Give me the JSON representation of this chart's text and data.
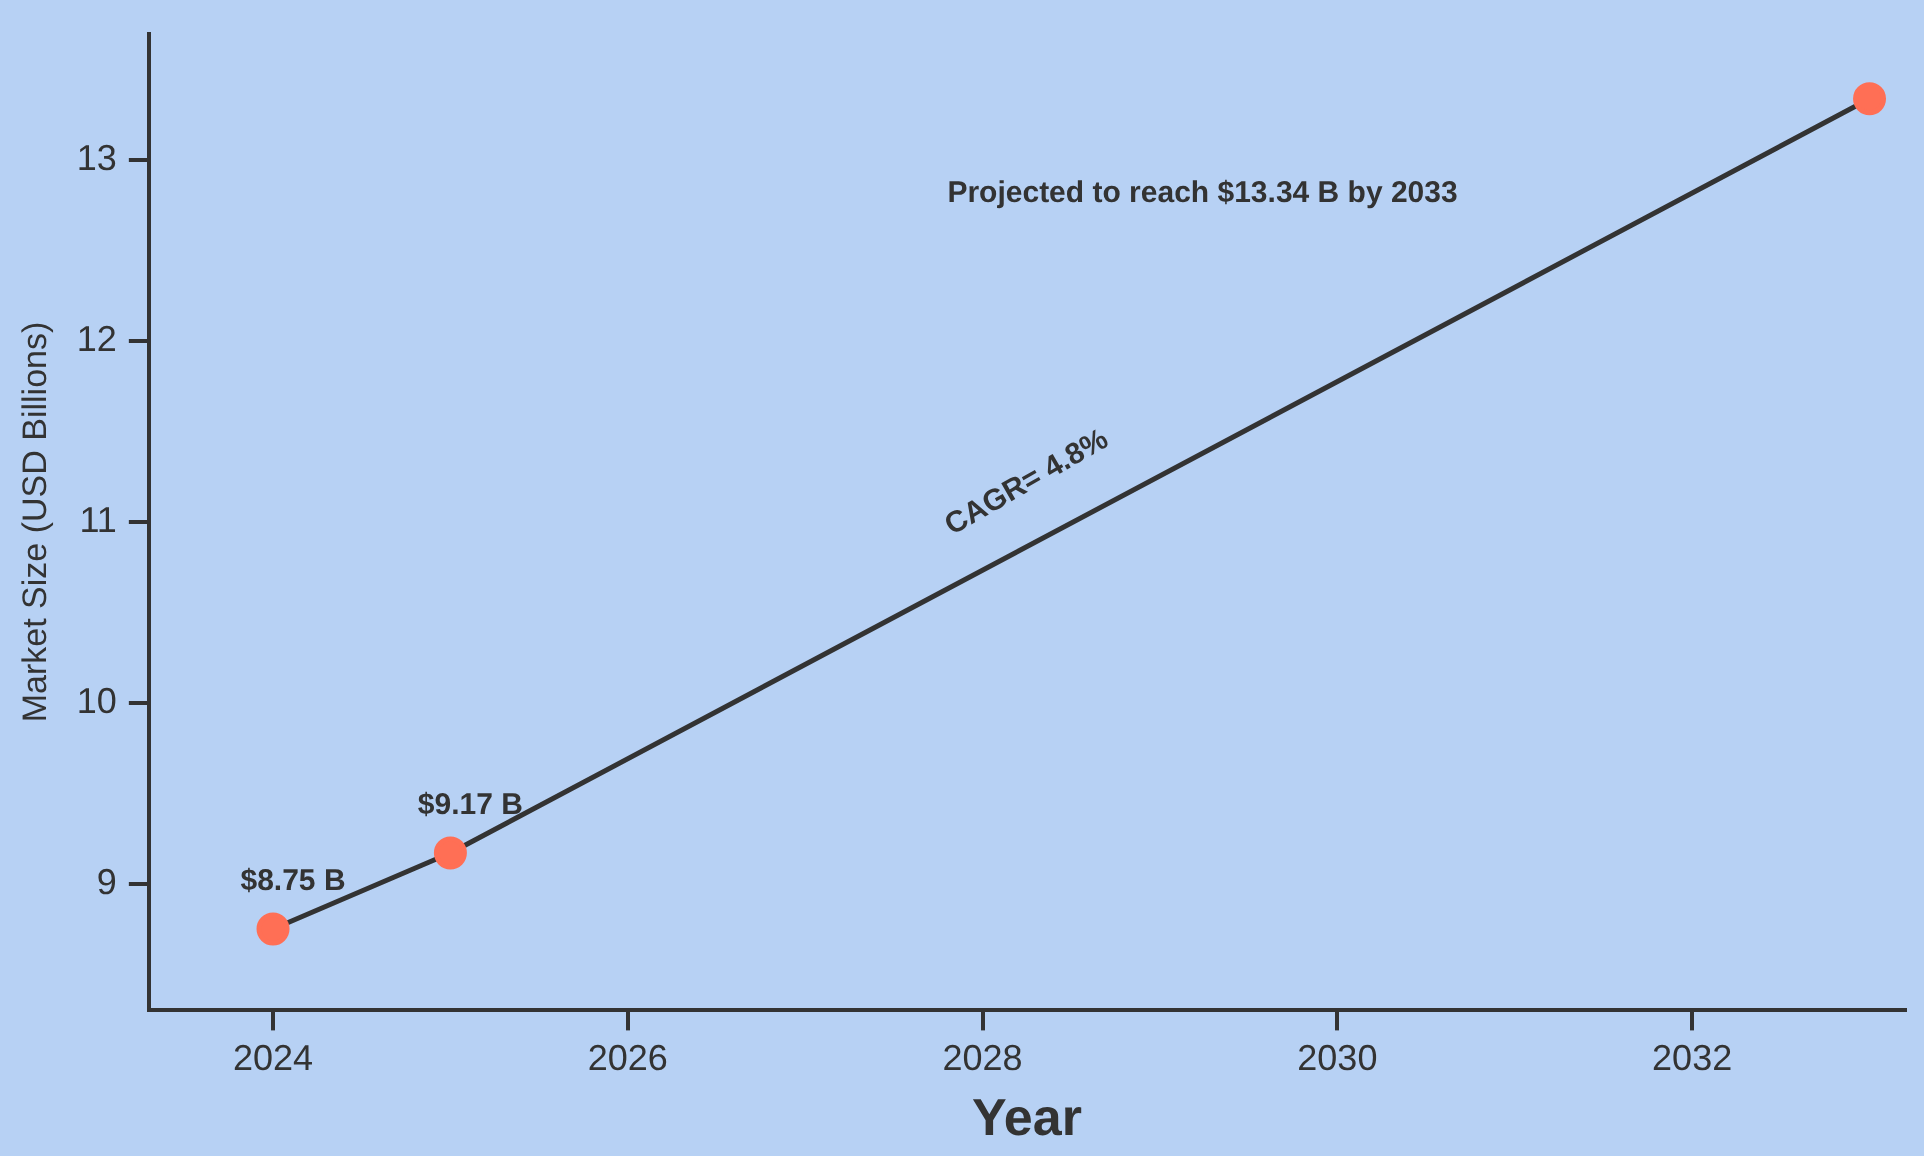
{
  "chart_data": {
    "type": "line",
    "xlabel": "Year",
    "ylabel": "Market Size (USD Billions)",
    "x": [
      2024,
      2025,
      2033
    ],
    "series": [
      {
        "color": "#ff6f55",
        "values": [
          8.75,
          9.17,
          13.34
        ],
        "value_labels": [
          "$8.75 B",
          "$9.17 B",
          null
        ]
      }
    ],
    "xlim": [
      2023.3,
      2033.2
    ],
    "xticks": [
      2024,
      2026,
      2028,
      2030,
      2032
    ],
    "ylim": [
      8.3,
      13.7
    ],
    "yticks": [
      9,
      10,
      11,
      12,
      13
    ],
    "grid": false,
    "legend": false,
    "marker": "circle",
    "line_style": "solid",
    "annotations": [
      "Projected to reach $13.34 B by 2033",
      "CAGR= 4.8%"
    ]
  }
}
